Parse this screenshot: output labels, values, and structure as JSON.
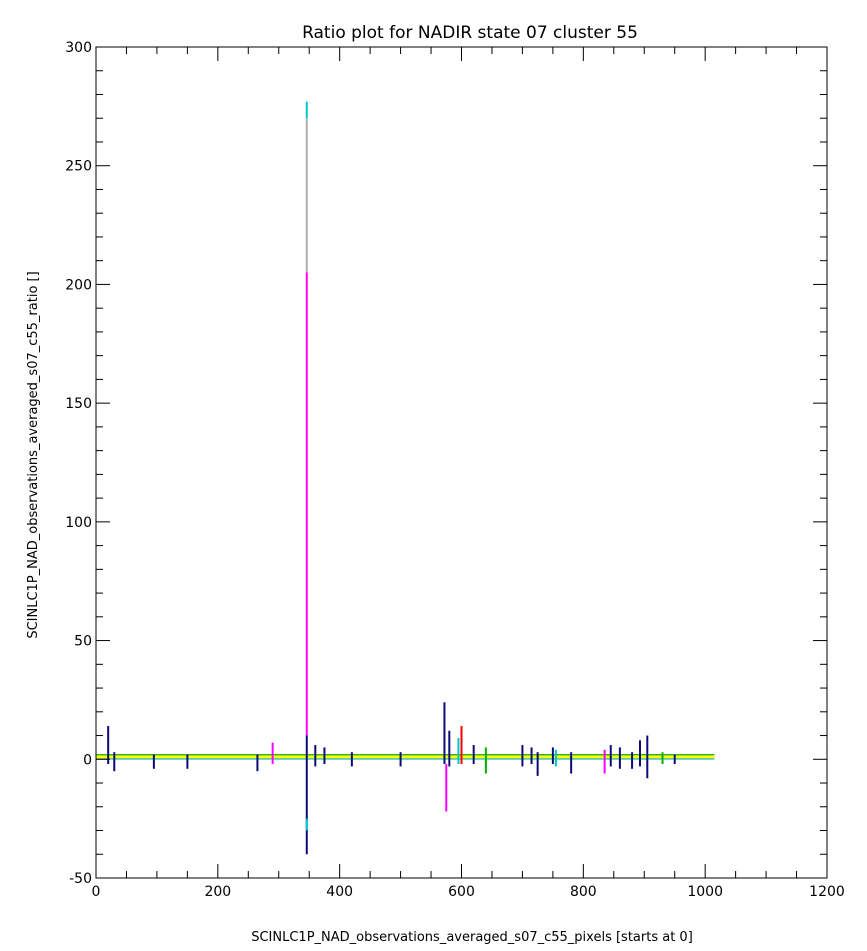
{
  "chart_data": {
    "type": "line",
    "title": "Ratio plot for NADIR state 07 cluster 55",
    "xlabel": "SCINLC1P_NAD_observations_averaged_s07_c55_pixels [starts at 0]",
    "ylabel": "SCINLC1P_NAD_observations_averaged_s07_c55_ratio []",
    "xlim": [
      0,
      1200
    ],
    "ylim": [
      -50,
      300
    ],
    "x_ticks": [
      "0",
      "200",
      "400",
      "600",
      "800",
      "1000",
      "1200"
    ],
    "y_ticks": [
      "-50",
      "0",
      "50",
      "100",
      "150",
      "200",
      "250",
      "300"
    ],
    "grid": false,
    "legend": "none",
    "series_colors": [
      "#0a0a78",
      "#ff00ff",
      "#00c8c8",
      "#ff0000",
      "#00b000",
      "#ffff00",
      "#b0b0b0"
    ],
    "baseline": {
      "x_start": 0,
      "x_end": 1015,
      "y": 1
    },
    "spikes": [
      {
        "x": 20,
        "y_min": -2,
        "y_max": 14,
        "color": "#0a0a78"
      },
      {
        "x": 30,
        "y_min": -5,
        "y_max": 3,
        "color": "#0a0a78"
      },
      {
        "x": 95,
        "y_min": -4,
        "y_max": 2,
        "color": "#0a0a78"
      },
      {
        "x": 150,
        "y_min": -4,
        "y_max": 2,
        "color": "#0a0a78"
      },
      {
        "x": 265,
        "y_min": -5,
        "y_max": 2,
        "color": "#0a0a78"
      },
      {
        "x": 290,
        "y_min": -2,
        "y_max": 7,
        "color": "#ff00ff"
      },
      {
        "x": 346,
        "y_min": -40,
        "y_max": 10,
        "color": "#0a0a78"
      },
      {
        "x": 346,
        "y_min": -30,
        "y_max": -25,
        "color": "#00c8c8"
      },
      {
        "x": 346,
        "y_min": 10,
        "y_max": 205,
        "color": "#ff00ff"
      },
      {
        "x": 346,
        "y_min": 205,
        "y_max": 270,
        "color": "#b0b0b0"
      },
      {
        "x": 346,
        "y_min": 270,
        "y_max": 277,
        "color": "#00c8c8"
      },
      {
        "x": 360,
        "y_min": -3,
        "y_max": 6,
        "color": "#0a0a78"
      },
      {
        "x": 375,
        "y_min": -2,
        "y_max": 5,
        "color": "#0a0a78"
      },
      {
        "x": 420,
        "y_min": -3,
        "y_max": 3,
        "color": "#0a0a78"
      },
      {
        "x": 500,
        "y_min": -3,
        "y_max": 3,
        "color": "#0a0a78"
      },
      {
        "x": 572,
        "y_min": -2,
        "y_max": 24,
        "color": "#0a0a78"
      },
      {
        "x": 575,
        "y_min": -22,
        "y_max": -2,
        "color": "#ff00ff"
      },
      {
        "x": 580,
        "y_min": -3,
        "y_max": 12,
        "color": "#0a0a78"
      },
      {
        "x": 595,
        "y_min": -2,
        "y_max": 9,
        "color": "#00c8c8"
      },
      {
        "x": 600,
        "y_min": -2,
        "y_max": 14,
        "color": "#ff0000"
      },
      {
        "x": 620,
        "y_min": -2,
        "y_max": 6,
        "color": "#0a0a78"
      },
      {
        "x": 640,
        "y_min": -6,
        "y_max": 5,
        "color": "#00b000"
      },
      {
        "x": 700,
        "y_min": -3,
        "y_max": 6,
        "color": "#0a0a78"
      },
      {
        "x": 715,
        "y_min": -2,
        "y_max": 5,
        "color": "#0a0a78"
      },
      {
        "x": 725,
        "y_min": -7,
        "y_max": 3,
        "color": "#0a0a78"
      },
      {
        "x": 750,
        "y_min": -2,
        "y_max": 5,
        "color": "#0a0a78"
      },
      {
        "x": 755,
        "y_min": -3,
        "y_max": 4,
        "color": "#00c8c8"
      },
      {
        "x": 780,
        "y_min": -6,
        "y_max": 3,
        "color": "#0a0a78"
      },
      {
        "x": 835,
        "y_min": -6,
        "y_max": 4,
        "color": "#ff00ff"
      },
      {
        "x": 845,
        "y_min": -3,
        "y_max": 6,
        "color": "#0a0a78"
      },
      {
        "x": 860,
        "y_min": -4,
        "y_max": 5,
        "color": "#0a0a78"
      },
      {
        "x": 880,
        "y_min": -4,
        "y_max": 3,
        "color": "#0a0a78"
      },
      {
        "x": 893,
        "y_min": -3,
        "y_max": 8,
        "color": "#0a0a78"
      },
      {
        "x": 905,
        "y_min": -8,
        "y_max": 10,
        "color": "#0a0a78"
      },
      {
        "x": 930,
        "y_min": -2,
        "y_max": 3,
        "color": "#00b000"
      },
      {
        "x": 950,
        "y_min": -2,
        "y_max": 2,
        "color": "#0a0a78"
      }
    ]
  }
}
